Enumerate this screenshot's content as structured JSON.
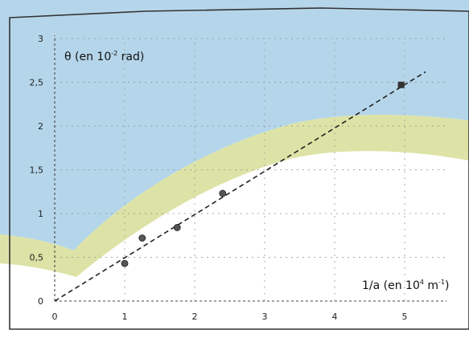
{
  "chart_data": {
    "type": "scatter",
    "title": "",
    "ylabel": {
      "main": "θ (en 10",
      "sup": "-2",
      "tail": " rad)"
    },
    "xlabel": {
      "main": "1/a (en 10",
      "sup": "4",
      "tail": " m",
      "sup2": "-1",
      "end": ")"
    },
    "x_ticks": [
      "0",
      "1",
      "2",
      "3",
      "4",
      "5"
    ],
    "y_ticks": [
      "0",
      "0,5",
      "1",
      "1,5",
      "2",
      "2,5",
      "3"
    ],
    "xlim": [
      0,
      5.6
    ],
    "ylim": [
      0,
      3
    ],
    "grid": true,
    "points": [
      {
        "x": 1.0,
        "y": 0.43
      },
      {
        "x": 1.25,
        "y": 0.72
      },
      {
        "x": 1.75,
        "y": 0.84
      },
      {
        "x": 2.4,
        "y": 1.23
      },
      {
        "x": 4.95,
        "y": 2.47
      }
    ],
    "fit_line": {
      "style": "dashed",
      "x": [
        0,
        5.3
      ],
      "y": [
        0,
        2.62
      ]
    }
  },
  "colors": {
    "background_band_blue": "#b5d6ea",
    "background_band_green": "#dde3a6",
    "marker": "#555555",
    "line": "#222222"
  }
}
